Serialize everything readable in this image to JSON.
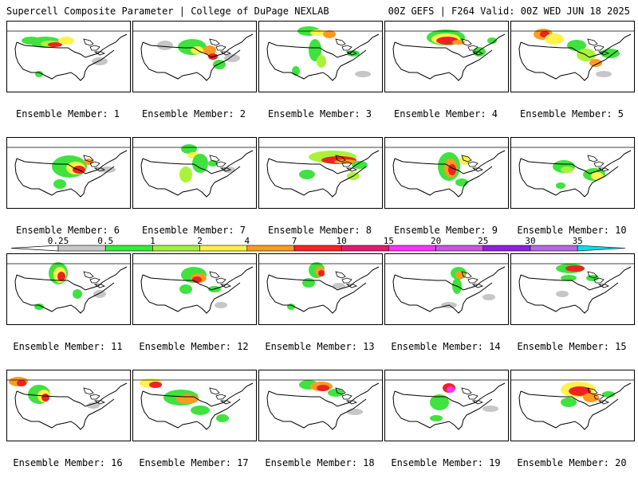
{
  "header": {
    "title_left": "Supercell Composite Parameter | College of DuPage NEXLAB",
    "title_right": "00Z GEFS | F264 Valid: 00Z WED JUN 18 2025"
  },
  "member_label_prefix": "Ensemble Member: ",
  "members": [
    "1",
    "2",
    "3",
    "4",
    "5",
    "6",
    "7",
    "8",
    "9",
    "10",
    "11",
    "12",
    "13",
    "14",
    "15",
    "16",
    "17",
    "18",
    "19",
    "20"
  ],
  "colorbar": {
    "ticks": [
      "0.25",
      "0.5",
      "1",
      "2",
      "4",
      "7",
      "10",
      "15",
      "20",
      "25",
      "30",
      "35"
    ],
    "colors": [
      "#c8c8c8",
      "#33ee33",
      "#a0f040",
      "#fff040",
      "#ff9a20",
      "#ff2020",
      "#e8186e",
      "#ff30ff",
      "#d050e8",
      "#8f1ee0",
      "#b865e6",
      "#00e0f0"
    ]
  },
  "palette": {
    "gray": "#c6c6c6",
    "green": "#3fe23f",
    "lime": "#aaf23a",
    "yellow": "#fff24a",
    "orange": "#ff9a22",
    "red": "#ee2222",
    "magenta": "#ff30ff",
    "purple": "#9b30d8"
  }
}
